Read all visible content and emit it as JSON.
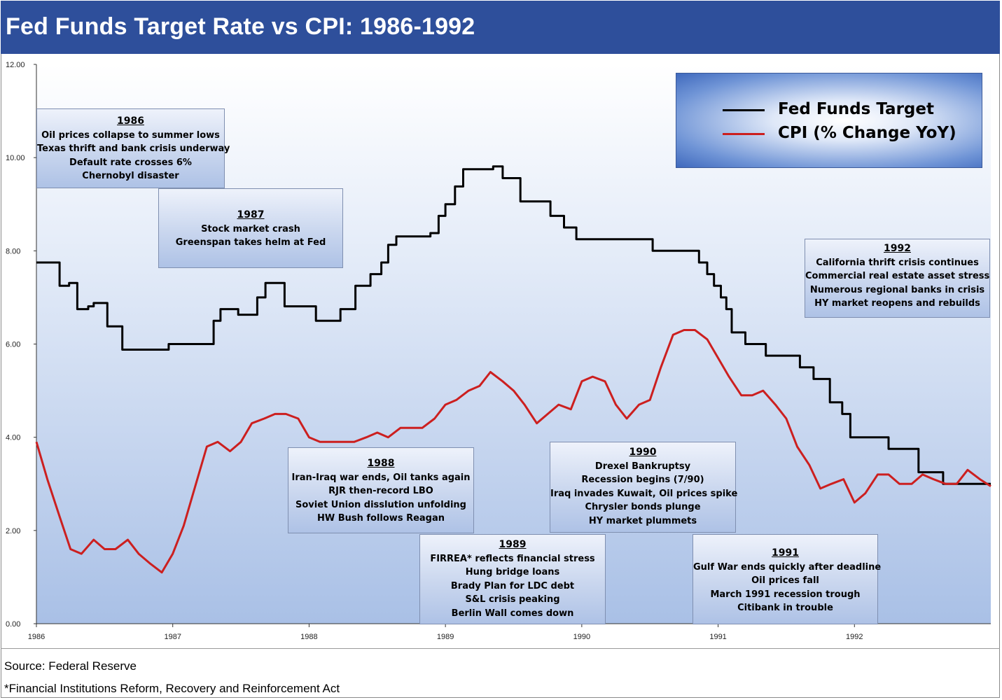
{
  "title": "Fed Funds Target Rate vs CPI: 1986-1992",
  "chart_data": {
    "type": "line",
    "title": "Fed Funds Target Rate vs CPI: 1986-1992",
    "xlim": [
      1986,
      1993
    ],
    "ylim": [
      0,
      12
    ],
    "y_ticks": [
      "0.00",
      "2.00",
      "4.00",
      "6.00",
      "8.00",
      "10.00",
      "12.00"
    ],
    "x_ticks": [
      "1986",
      "1987",
      "1988",
      "1989",
      "1990",
      "1991",
      "1992"
    ],
    "colors": {
      "fed": "#000000",
      "cpi": "#cc1f1f"
    },
    "series": [
      {
        "name": "Fed Funds Target",
        "step": true,
        "points": [
          [
            1986.0,
            7.75
          ],
          [
            1986.17,
            7.25
          ],
          [
            1986.24,
            7.31
          ],
          [
            1986.3,
            6.75
          ],
          [
            1986.38,
            6.81
          ],
          [
            1986.42,
            6.88
          ],
          [
            1986.52,
            6.38
          ],
          [
            1986.63,
            5.88
          ],
          [
            1986.97,
            6.0
          ],
          [
            1987.3,
            6.5
          ],
          [
            1987.35,
            6.75
          ],
          [
            1987.48,
            6.63
          ],
          [
            1987.62,
            7.0
          ],
          [
            1987.68,
            7.31
          ],
          [
            1987.82,
            6.81
          ],
          [
            1988.05,
            6.5
          ],
          [
            1988.23,
            6.75
          ],
          [
            1988.34,
            7.25
          ],
          [
            1988.45,
            7.5
          ],
          [
            1988.53,
            7.75
          ],
          [
            1988.58,
            8.13
          ],
          [
            1988.64,
            8.31
          ],
          [
            1988.89,
            8.38
          ],
          [
            1988.95,
            8.75
          ],
          [
            1989.0,
            9.0
          ],
          [
            1989.07,
            9.38
          ],
          [
            1989.13,
            9.75
          ],
          [
            1989.35,
            9.81
          ],
          [
            1989.42,
            9.56
          ],
          [
            1989.55,
            9.06
          ],
          [
            1989.77,
            8.75
          ],
          [
            1989.87,
            8.5
          ],
          [
            1989.96,
            8.25
          ],
          [
            1990.52,
            8.0
          ],
          [
            1990.86,
            7.75
          ],
          [
            1990.92,
            7.5
          ],
          [
            1990.97,
            7.25
          ],
          [
            1991.02,
            7.0
          ],
          [
            1991.06,
            6.75
          ],
          [
            1991.1,
            6.25
          ],
          [
            1991.2,
            6.0
          ],
          [
            1991.35,
            5.75
          ],
          [
            1991.6,
            5.5
          ],
          [
            1991.7,
            5.25
          ],
          [
            1991.82,
            4.75
          ],
          [
            1991.91,
            4.5
          ],
          [
            1991.97,
            4.0
          ],
          [
            1992.25,
            3.75
          ],
          [
            1992.47,
            3.25
          ],
          [
            1992.65,
            3.0
          ],
          [
            1993.0,
            3.0
          ]
        ]
      },
      {
        "name": "CPI (% Change YoY)",
        "step": false,
        "points": [
          [
            1986.0,
            3.9
          ],
          [
            1986.08,
            3.1
          ],
          [
            1986.17,
            2.3
          ],
          [
            1986.25,
            1.6
          ],
          [
            1986.33,
            1.5
          ],
          [
            1986.42,
            1.8
          ],
          [
            1986.5,
            1.6
          ],
          [
            1986.58,
            1.6
          ],
          [
            1986.67,
            1.8
          ],
          [
            1986.75,
            1.5
          ],
          [
            1986.83,
            1.3
          ],
          [
            1986.92,
            1.1
          ],
          [
            1987.0,
            1.5
          ],
          [
            1987.08,
            2.1
          ],
          [
            1987.17,
            3.0
          ],
          [
            1987.25,
            3.8
          ],
          [
            1987.33,
            3.9
          ],
          [
            1987.42,
            3.7
          ],
          [
            1987.5,
            3.9
          ],
          [
            1987.58,
            4.3
          ],
          [
            1987.67,
            4.4
          ],
          [
            1987.75,
            4.5
          ],
          [
            1987.83,
            4.5
          ],
          [
            1987.92,
            4.4
          ],
          [
            1988.0,
            4.0
          ],
          [
            1988.08,
            3.9
          ],
          [
            1988.17,
            3.9
          ],
          [
            1988.25,
            3.9
          ],
          [
            1988.33,
            3.9
          ],
          [
            1988.42,
            4.0
          ],
          [
            1988.5,
            4.1
          ],
          [
            1988.58,
            4.0
          ],
          [
            1988.67,
            4.2
          ],
          [
            1988.75,
            4.2
          ],
          [
            1988.83,
            4.2
          ],
          [
            1988.92,
            4.4
          ],
          [
            1989.0,
            4.7
          ],
          [
            1989.08,
            4.8
          ],
          [
            1989.17,
            5.0
          ],
          [
            1989.25,
            5.1
          ],
          [
            1989.33,
            5.4
          ],
          [
            1989.42,
            5.2
          ],
          [
            1989.5,
            5.0
          ],
          [
            1989.58,
            4.7
          ],
          [
            1989.67,
            4.3
          ],
          [
            1989.75,
            4.5
          ],
          [
            1989.83,
            4.7
          ],
          [
            1989.92,
            4.6
          ],
          [
            1990.0,
            5.2
          ],
          [
            1990.08,
            5.3
          ],
          [
            1990.17,
            5.2
          ],
          [
            1990.25,
            4.7
          ],
          [
            1990.33,
            4.4
          ],
          [
            1990.42,
            4.7
          ],
          [
            1990.5,
            4.8
          ],
          [
            1990.58,
            5.5
          ],
          [
            1990.67,
            6.2
          ],
          [
            1990.75,
            6.3
          ],
          [
            1990.83,
            6.3
          ],
          [
            1990.92,
            6.1
          ],
          [
            1991.0,
            5.7
          ],
          [
            1991.08,
            5.3
          ],
          [
            1991.17,
            4.9
          ],
          [
            1991.25,
            4.9
          ],
          [
            1991.33,
            5.0
          ],
          [
            1991.42,
            4.7
          ],
          [
            1991.5,
            4.4
          ],
          [
            1991.58,
            3.8
          ],
          [
            1991.67,
            3.4
          ],
          [
            1991.75,
            2.9
          ],
          [
            1991.83,
            3.0
          ],
          [
            1991.92,
            3.1
          ],
          [
            1992.0,
            2.6
          ],
          [
            1992.08,
            2.8
          ],
          [
            1992.17,
            3.2
          ],
          [
            1992.25,
            3.2
          ],
          [
            1992.33,
            3.0
          ],
          [
            1992.42,
            3.0
          ],
          [
            1992.5,
            3.2
          ],
          [
            1992.58,
            3.1
          ],
          [
            1992.67,
            3.0
          ],
          [
            1992.75,
            3.0
          ],
          [
            1992.83,
            3.3
          ],
          [
            1992.92,
            3.1
          ],
          [
            1993.0,
            2.95
          ]
        ]
      }
    ]
  },
  "legend": {
    "items": [
      {
        "label": "Fed Funds Target",
        "color": "#000000"
      },
      {
        "label": "CPI (% Change YoY)",
        "color": "#cc1f1f"
      }
    ]
  },
  "annotations": {
    "a1986": {
      "year": "1986",
      "lines": [
        "Oil prices collapse to summer lows",
        "Texas thrift and bank crisis underway",
        "Default rate crosses 6%",
        "Chernobyl disaster"
      ]
    },
    "a1987": {
      "year": "1987",
      "lines": [
        "Stock market crash",
        "Greenspan takes helm at Fed"
      ]
    },
    "a1988": {
      "year": "1988",
      "lines": [
        "Iran-Iraq war ends, Oil tanks again",
        "RJR then-record LBO",
        "Soviet Union disslution unfolding",
        "HW Bush follows Reagan"
      ]
    },
    "a1989": {
      "year": "1989",
      "lines": [
        "FIRREA* reflects financial stress",
        "Hung bridge loans",
        "Brady Plan for LDC debt",
        "S&L crisis peaking",
        "Berlin Wall comes down"
      ]
    },
    "a1990": {
      "year": "1990",
      "lines": [
        "Drexel Bankruptsy",
        "Recession begins (7/90)",
        "Iraq invades Kuwait, Oil prices spike",
        "Chrysler bonds plunge",
        "HY market plummets"
      ]
    },
    "a1991": {
      "year": "1991",
      "lines": [
        "Gulf War ends quickly after deadline",
        "Oil prices fall",
        "March 1991 recession trough",
        "Citibank in trouble"
      ]
    },
    "a1992": {
      "year": "1992",
      "lines": [
        "California thrift crisis continues",
        "Commercial real estate asset stress",
        "Numerous regional banks in crisis",
        "HY market reopens and rebuilds"
      ]
    }
  },
  "footer": {
    "source": "Source: Federal Reserve",
    "footnote": "*Financial Institutions Reform, Recovery and Reinforcement Act"
  }
}
